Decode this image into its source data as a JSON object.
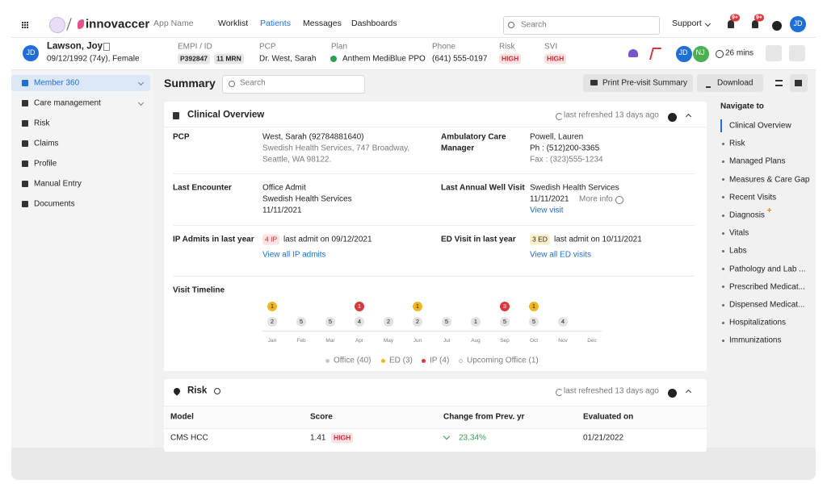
{
  "top_nav": {
    "brand": "innovaccer",
    "app_name": "App Name",
    "links": [
      {
        "label": "Worklist"
      },
      {
        "label": "Patients",
        "active": true
      },
      {
        "label": "Messages"
      },
      {
        "label": "Dashboards"
      }
    ],
    "search_placeholder": "Search",
    "support": "Support",
    "notification_badges": [
      "9+",
      "9+"
    ],
    "user_initials": "JD"
  },
  "patient": {
    "initials": "JD",
    "name": "Lawson, Joy",
    "details": "09/12/1992 (74y), Female",
    "empi_label": "EMPI / ID",
    "empi": "P392847",
    "mrn": "11 MRN",
    "pcp_label": "PCP",
    "pcp": "Dr. West, Sarah",
    "plan_label": "Plan",
    "plan": "Anthem MediBlue PPO",
    "phone_label": "Phone",
    "phone": "(641) 555-0197",
    "risk_label": "Risk",
    "risk": "HIGH",
    "svi_label": "SVI",
    "svi": "HIGH",
    "care_team": [
      "JD",
      "NJ"
    ],
    "timer": "26 mins"
  },
  "sidebar": {
    "items": [
      {
        "label": "Member 360",
        "active": true,
        "expandable": true
      },
      {
        "label": "Care management",
        "expandable": true
      },
      {
        "label": "Risk"
      },
      {
        "label": "Claims"
      },
      {
        "label": "Profile"
      },
      {
        "label": "Manual Entry"
      },
      {
        "label": "Documents"
      }
    ]
  },
  "summary": {
    "title": "Summary",
    "search_placeholder": "Search",
    "print_button": "Print Pre-visit Summary",
    "download_button": "Download"
  },
  "clinical_overview": {
    "title": "Clinical Overview",
    "refreshed": "last refreshed 13 days ago",
    "pcp": {
      "label": "PCP",
      "lines": [
        "West, Sarah (92784881640)",
        "Swedish Health Services, 747 Broadway,",
        "Seattle, WA 98122."
      ]
    },
    "care_manager": {
      "label_lines": [
        "Ambulatory Care",
        "Manager"
      ],
      "lines": [
        "Powell, Lauren",
        "Ph : (512)200-3365",
        "Fax : (323)555-1234"
      ]
    },
    "last_encounter": {
      "label": "Last Encounter",
      "lines": [
        "Office Admit",
        "Swedish Health Services",
        "11/11/2021"
      ]
    },
    "annual_well_visit": {
      "label": "Last Annual Well Visit",
      "lines": [
        "Swedish Health Services",
        "11/11/2021"
      ],
      "more_info": "More info",
      "link": "View visit"
    },
    "ip_admits": {
      "label": "IP Admits in last year",
      "badge": "4 IP",
      "last_admit": "last admit on 09/12/2021",
      "link": "View all IP admits"
    },
    "ed_visits": {
      "label": "ED Visit in last year",
      "badge": "3 ED",
      "last_admit": "last admit on 10/11/2021",
      "link": "View all ED visits"
    },
    "visit_timeline": {
      "label": "Visit Timeline",
      "months": [
        {
          "label": "Jan",
          "office": 2,
          "ed": 1
        },
        {
          "label": "Feb",
          "office": 5
        },
        {
          "label": "Mar",
          "office": 5
        },
        {
          "label": "Apr",
          "office": 4,
          "ip": 1
        },
        {
          "label": "May",
          "office": 2
        },
        {
          "label": "Jun",
          "office": 2,
          "ed": 1
        },
        {
          "label": "Jul",
          "office": 5
        },
        {
          "label": "Aug",
          "office": 1
        },
        {
          "label": "Sep",
          "office": 5,
          "ip": 3
        },
        {
          "label": "Oct",
          "office": 5,
          "ed": 1
        },
        {
          "label": "Nov",
          "office": 4
        },
        {
          "label": "Dec"
        }
      ],
      "legend": {
        "office": "Office (40)",
        "ed": "ED (3)",
        "ip": "IP (4)",
        "upcoming": "Upcoming Office (1)"
      }
    }
  },
  "risk": {
    "title": "Risk",
    "refreshed": "last refreshed 13 days ago",
    "table": {
      "headers": [
        "Model",
        "Score",
        "Change from Prev. yr",
        "Evaluated on"
      ],
      "rows": [
        {
          "model": "CMS HCC",
          "score": "1.41",
          "level": "HIGH",
          "change": "23.34%",
          "evaluated_on": "01/21/2022"
        }
      ]
    }
  },
  "navigate": {
    "title": "Navigate to",
    "items": [
      {
        "label": "Clinical Overview",
        "active": true
      },
      {
        "label": "Risk"
      },
      {
        "label": "Managed Plans"
      },
      {
        "label": "Measures & Care Gap"
      },
      {
        "label": "Recent Visits"
      },
      {
        "label": "Diagnosis",
        "alert": true
      },
      {
        "label": "Vitals"
      },
      {
        "label": "Labs"
      },
      {
        "label": "Pathology and Lab ..."
      },
      {
        "label": "Prescribed Medicat..."
      },
      {
        "label": "Dispensed Medicat..."
      },
      {
        "label": "Hospitalizations"
      },
      {
        "label": "Immunizations"
      }
    ]
  }
}
